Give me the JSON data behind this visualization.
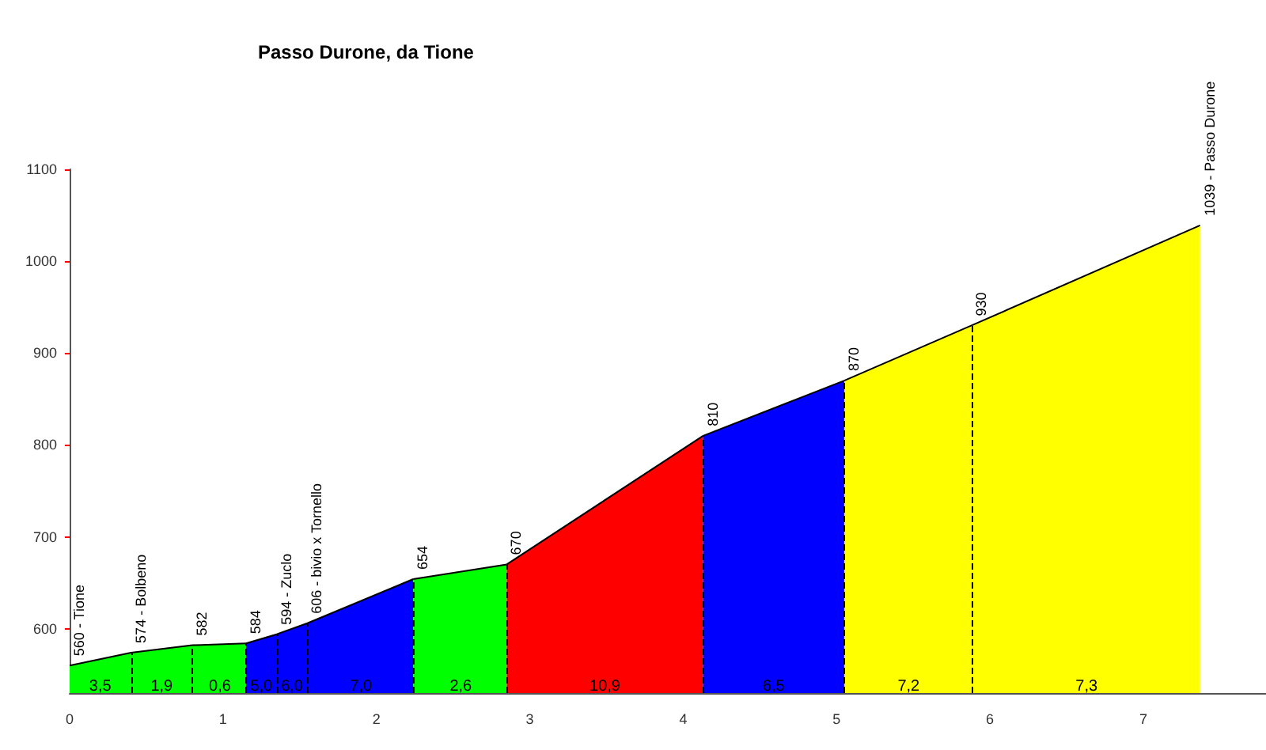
{
  "chart_data": {
    "type": "area",
    "title": "Passo Durone, da Tione",
    "xlim": [
      0,
      7.8
    ],
    "xticks": [
      0,
      1,
      2,
      3,
      4,
      5,
      6,
      7
    ],
    "ylim": [
      530,
      1100
    ],
    "yticks": [
      600,
      700,
      800,
      900,
      1000,
      1100
    ],
    "grid": false,
    "series": [
      {
        "color": "#00ff00",
        "x": [
          0,
          0.4,
          0.8,
          1.15
        ],
        "values": [
          560,
          574,
          582,
          584
        ],
        "value_labels": [
          "560 - Tione",
          "574 - Bolbeno",
          "582",
          "584"
        ]
      },
      {
        "color": "#0000ff",
        "x": [
          1.15,
          1.35,
          1.55,
          2.24
        ],
        "values": [
          584,
          594,
          606,
          654
        ],
        "value_labels": [
          null,
          "594 - Zuclo",
          "606 - bivio x Tornello",
          "654"
        ]
      },
      {
        "color": "#00ff00",
        "x": [
          2.24,
          2.85
        ],
        "values": [
          654,
          670
        ],
        "value_labels": [
          null,
          "670"
        ]
      },
      {
        "color": "#ff0000",
        "x": [
          2.85,
          4.13
        ],
        "values": [
          670,
          810
        ],
        "value_labels": [
          null,
          "810"
        ]
      },
      {
        "color": "#0000ff",
        "x": [
          4.13,
          5.05
        ],
        "values": [
          810,
          870
        ],
        "value_labels": [
          null,
          "870"
        ]
      },
      {
        "color": "#ffff00",
        "x": [
          5.05,
          5.88,
          7.37
        ],
        "values": [
          870,
          930,
          1039
        ],
        "value_labels": [
          null,
          "930",
          "1039 - Passo Durone"
        ]
      }
    ],
    "annotations": [
      {
        "text": "3,5",
        "x": 0.2,
        "y": 537
      },
      {
        "text": "1,9",
        "x": 0.6,
        "y": 537
      },
      {
        "text": "0,6",
        "x": 0.98,
        "y": 537
      },
      {
        "text": "5,0",
        "x": 1.25,
        "y": 537
      },
      {
        "text": "6,0",
        "x": 1.45,
        "y": 537
      },
      {
        "text": "7,0",
        "x": 1.9,
        "y": 537
      },
      {
        "text": "2,6",
        "x": 2.55,
        "y": 537
      },
      {
        "text": "10,9",
        "x": 3.49,
        "y": 537
      },
      {
        "text": "6,5",
        "x": 4.59,
        "y": 537
      },
      {
        "text": "7,2",
        "x": 5.47,
        "y": 537
      },
      {
        "text": "7,3",
        "x": 6.63,
        "y": 537
      }
    ]
  }
}
